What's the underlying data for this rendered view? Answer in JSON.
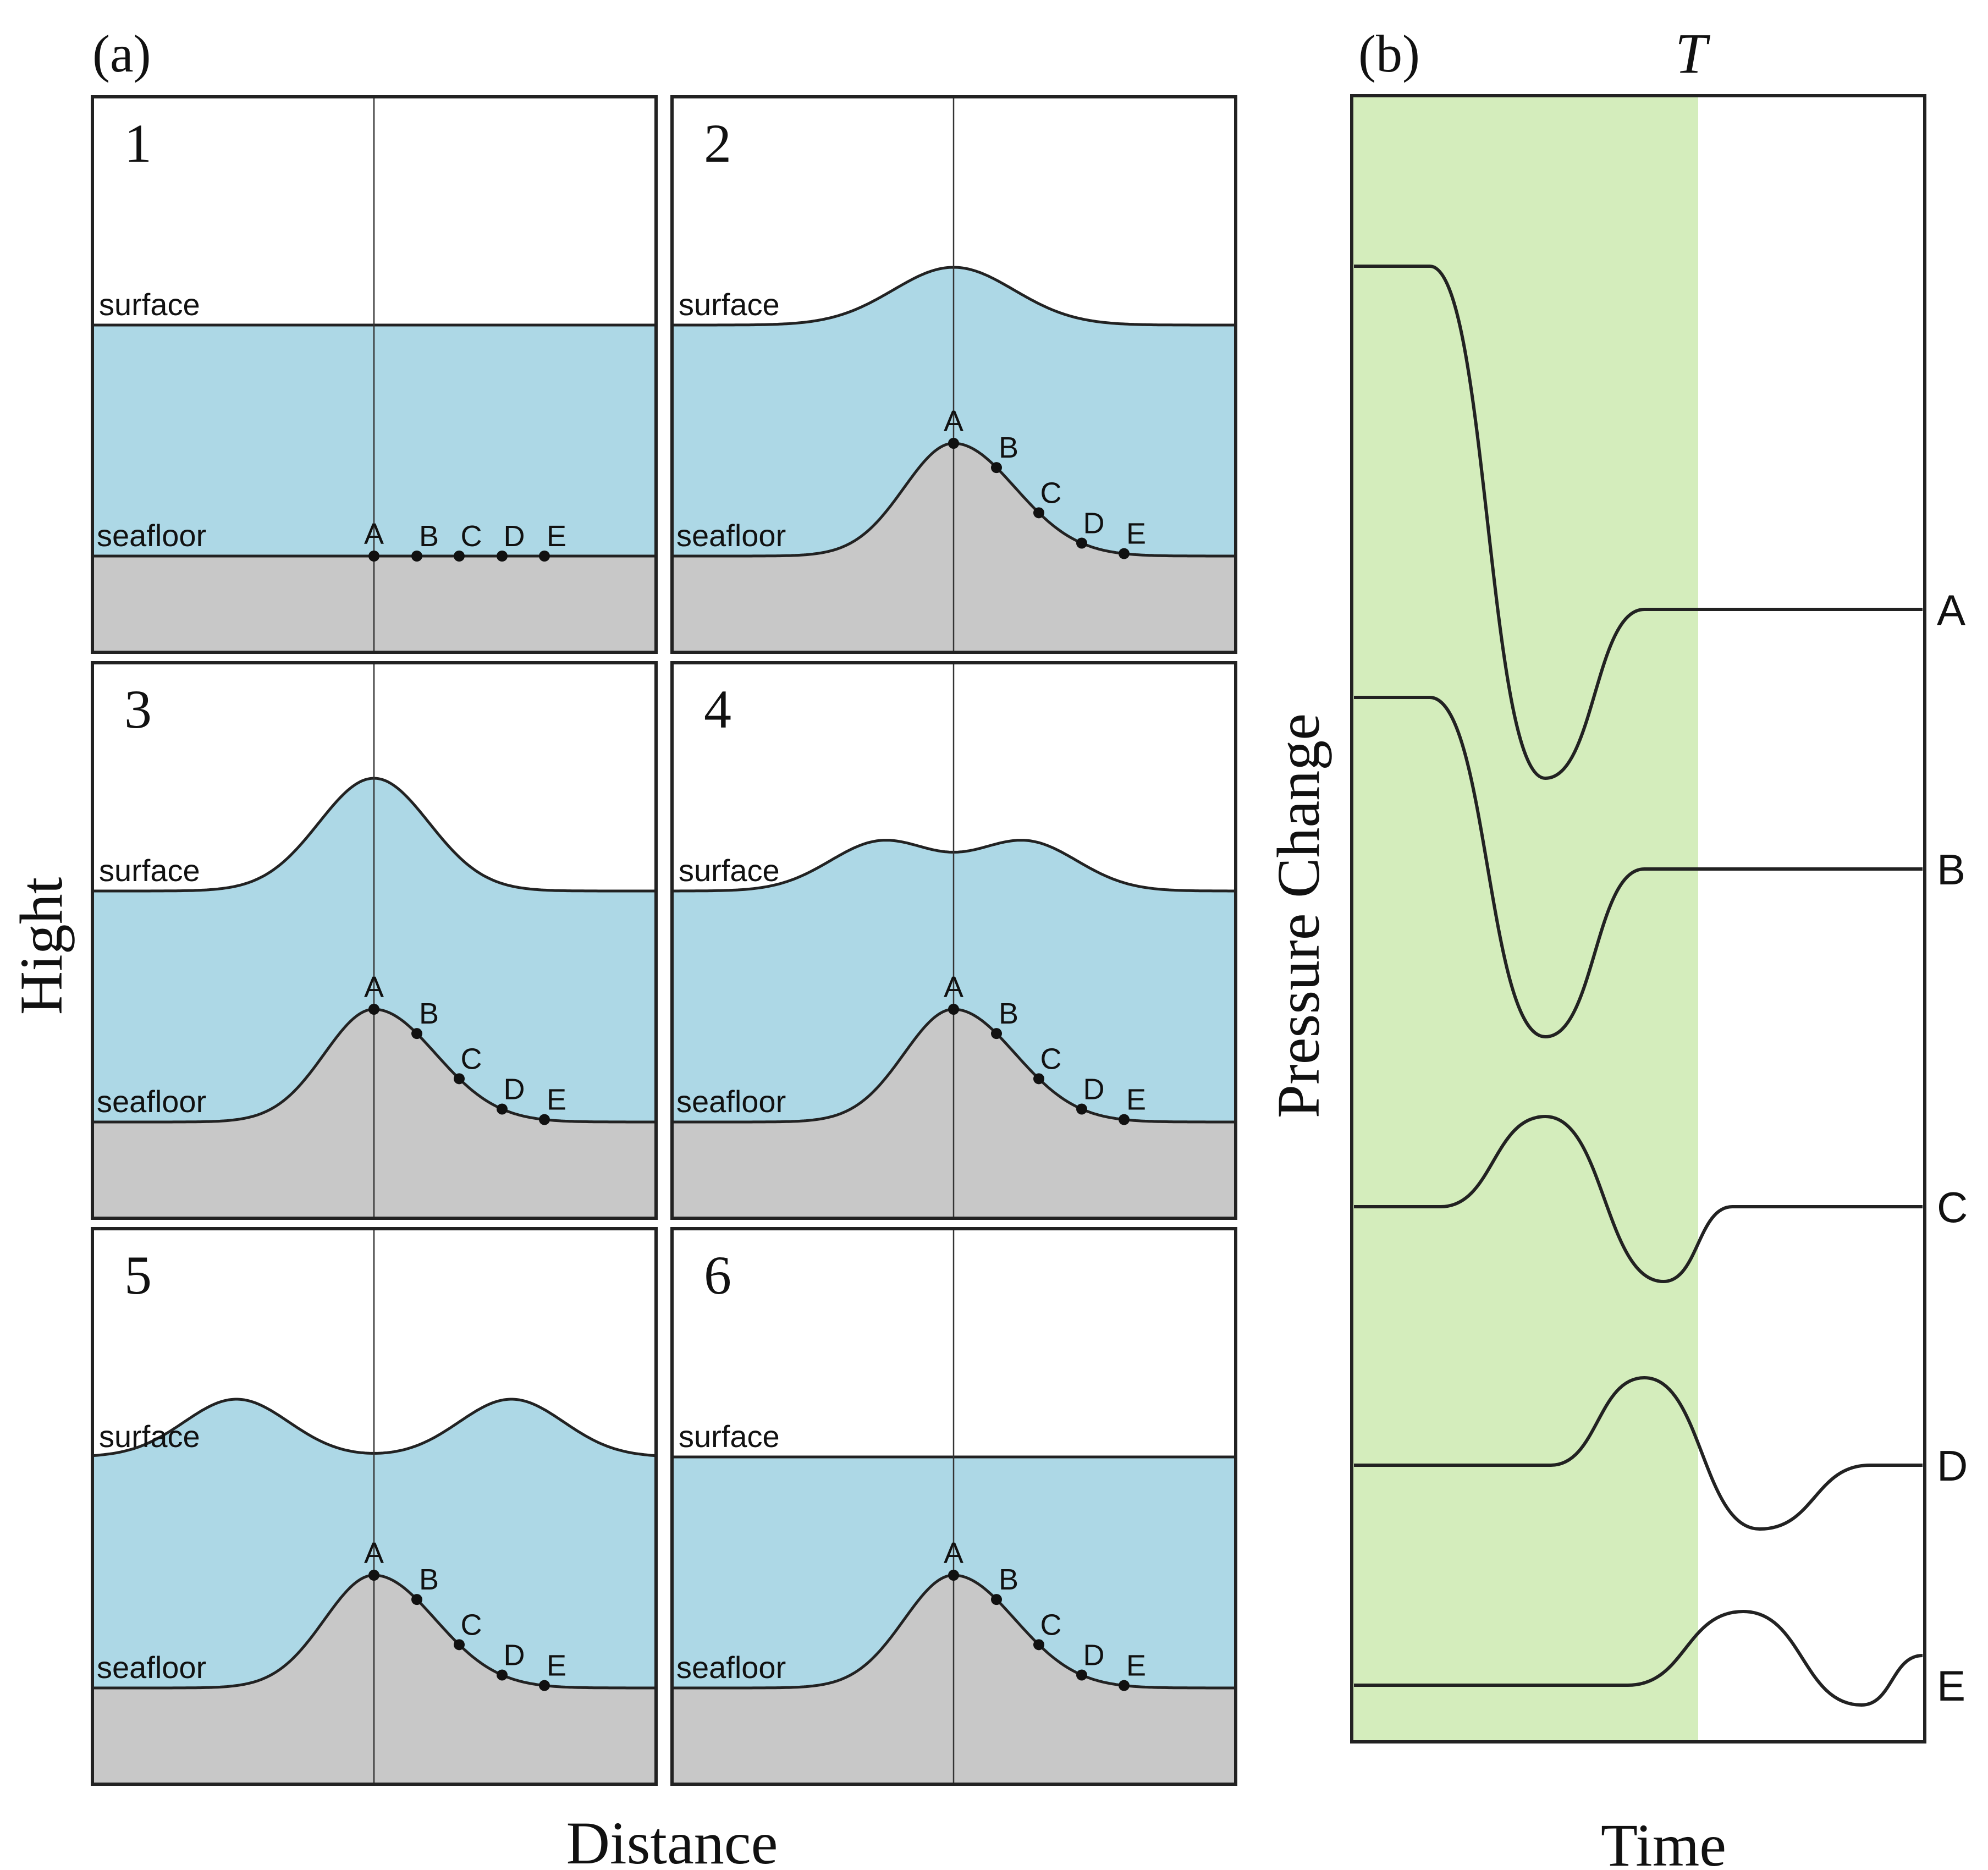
{
  "panel_a": {
    "label": "(a)",
    "y_axis_title": "Hight",
    "x_axis_title": "Distance",
    "surface_label": "surface",
    "seafloor_label": "seafloor",
    "points": [
      "A",
      "B",
      "C",
      "D",
      "E"
    ],
    "frames": [
      {
        "number": "1",
        "surface": "flat",
        "seafloor": "flat"
      },
      {
        "number": "2",
        "surface": "single-hump",
        "seafloor": "uplifted"
      },
      {
        "number": "3",
        "surface": "single-peak",
        "seafloor": "uplifted"
      },
      {
        "number": "4",
        "surface": "double-hump",
        "seafloor": "uplifted"
      },
      {
        "number": "5",
        "surface": "split-waves",
        "seafloor": "uplifted"
      },
      {
        "number": "6",
        "surface": "flat",
        "seafloor": "uplifted"
      }
    ],
    "colors": {
      "water": "#add8e6",
      "ground": "#c8c8c8"
    }
  },
  "panel_b": {
    "label": "(b)",
    "time_marker": "T",
    "y_axis_title": "Pressure Change",
    "x_axis_title": "Time",
    "trace_labels": [
      "A",
      "B",
      "C",
      "D",
      "E"
    ],
    "shade_color": "#d4edbc"
  }
}
